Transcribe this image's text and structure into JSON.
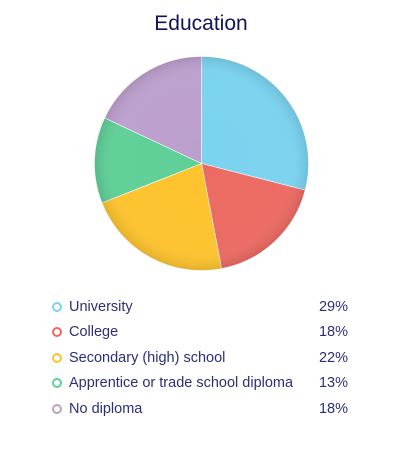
{
  "chart_data": {
    "type": "pie",
    "title": "Education",
    "categories": [
      "University",
      "College",
      "Secondary (high) school",
      "Apprentice or trade school diploma",
      "No diploma"
    ],
    "values": [
      29,
      18,
      22,
      13,
      18
    ],
    "value_labels": [
      "29%",
      "18%",
      "22%",
      "13%",
      "18%"
    ],
    "colors": [
      "#7ad3ef",
      "#ec6a62",
      "#fdc32e",
      "#5fcf97",
      "#bc9fcd"
    ],
    "legend_position": "bottom"
  }
}
